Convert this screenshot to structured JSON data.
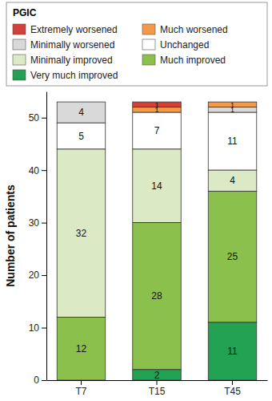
{
  "chart_data": {
    "type": "bar",
    "stacked": true,
    "data_labels": true,
    "legend": "top",
    "legend_title": "PGIC",
    "y_label": "Number of patients",
    "categories": [
      "T7",
      "T15",
      "T45"
    ],
    "series": [
      {
        "name": "Extremely worsened",
        "color": "#d2403a",
        "values": [
          0,
          1,
          0
        ]
      },
      {
        "name": "Much worsened",
        "color": "#f29a48",
        "values": [
          0,
          1,
          1
        ]
      },
      {
        "name": "Minimally worsened",
        "color": "#d9d9d9",
        "values": [
          4,
          0,
          1
        ]
      },
      {
        "name": "Unchanged",
        "color": "#ffffff",
        "values": [
          5,
          7,
          11
        ]
      },
      {
        "name": "Minimally improved",
        "color": "#dbe9c4",
        "values": [
          32,
          14,
          4
        ]
      },
      {
        "name": "Much improved",
        "color": "#8cc04c",
        "values": [
          12,
          28,
          25
        ]
      },
      {
        "name": "Very much improved",
        "color": "#23a152",
        "values": [
          0,
          2,
          11
        ]
      }
    ],
    "ylim": [
      0,
      55
    ],
    "yticks": [
      0,
      10,
      20,
      30,
      40,
      50
    ]
  }
}
